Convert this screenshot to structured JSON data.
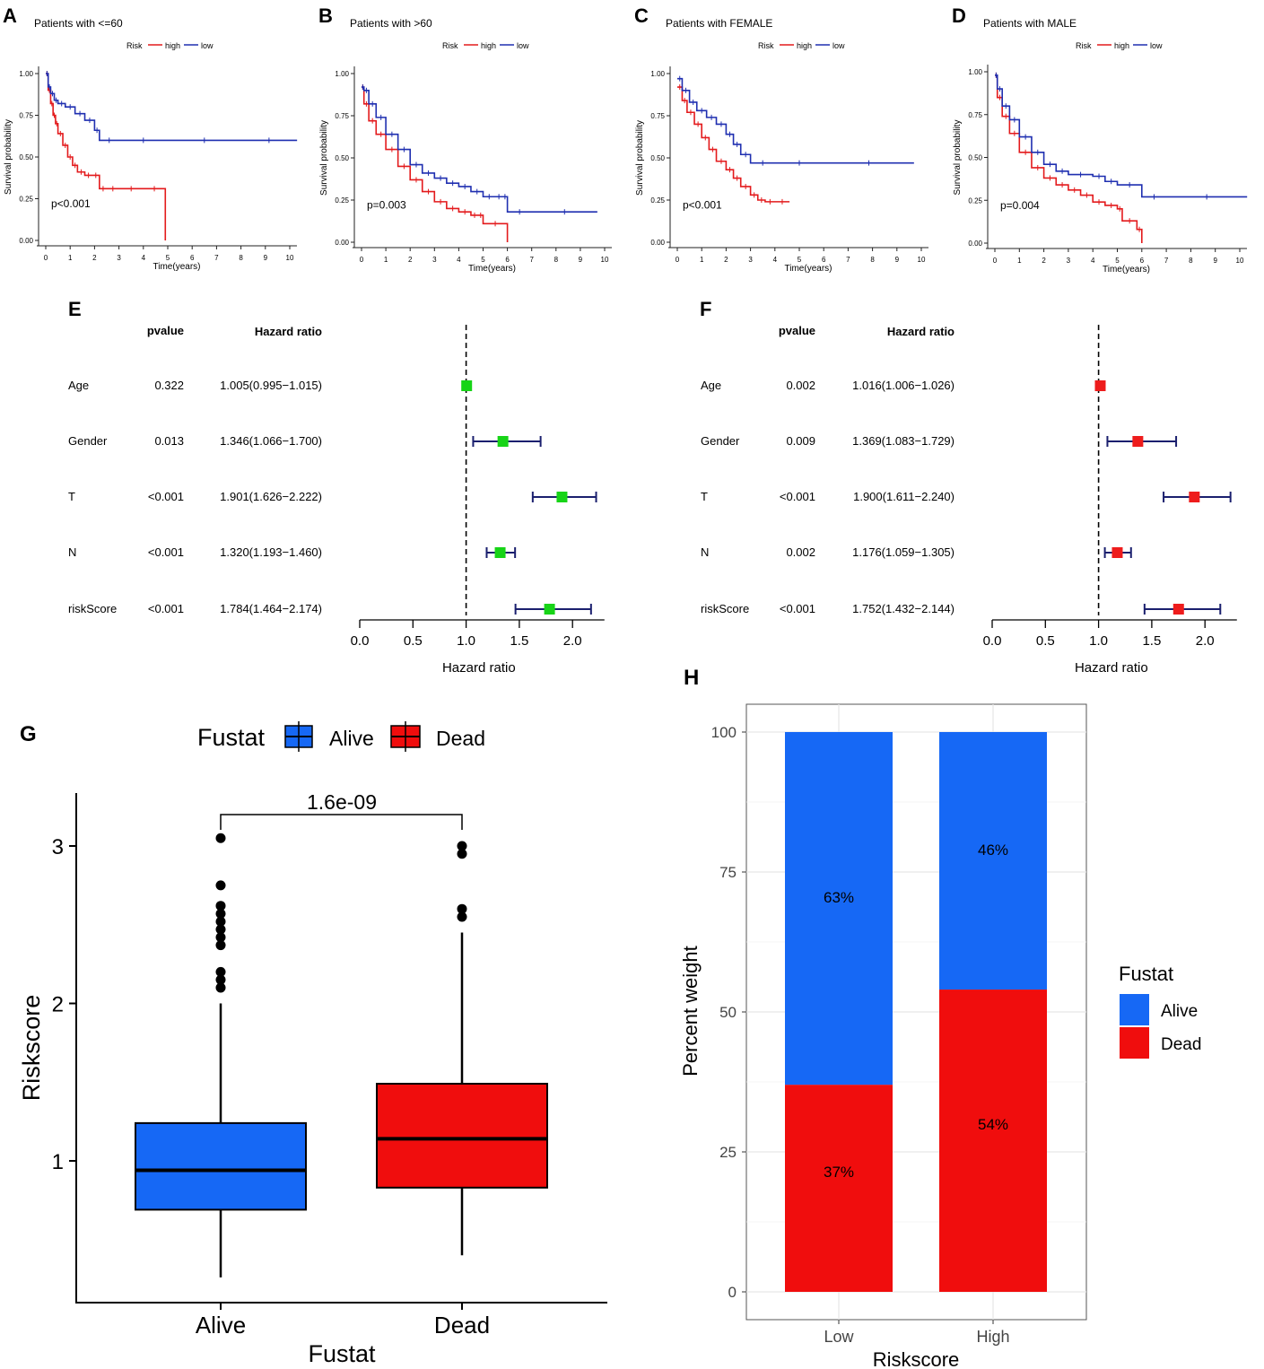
{
  "colors": {
    "high": "#e31a1c",
    "low": "#1f2fb0",
    "alive": "#1668f5",
    "dead": "#f00d0d",
    "green": "#17d417",
    "red_sq": "#ee1c1c",
    "navy": "#1a1f6e"
  },
  "km_common": {
    "legend_title": "Risk",
    "legend_high": "high",
    "legend_low": "low",
    "xlabel": "Time(years)",
    "ylabel": "Survival probability",
    "xticks": [
      "0",
      "1",
      "2",
      "3",
      "4",
      "5",
      "6",
      "7",
      "8",
      "9",
      "10"
    ],
    "yticks": [
      "0.00",
      "0.25",
      "0.50",
      "0.75",
      "1.00"
    ]
  },
  "forest_common": {
    "pvalue_header": "pvalue",
    "hr_header": "Hazard ratio",
    "xlabel": "Hazard ratio",
    "xticks": [
      "0.0",
      "0.5",
      "1.0",
      "1.5",
      "2.0"
    ]
  },
  "chart_data": [
    {
      "panel": "A",
      "type": "line",
      "title": "Patients with <=60",
      "pvalue": "p<0.001",
      "xlim": [
        0,
        10
      ],
      "ylim": [
        0,
        1
      ],
      "series": [
        {
          "name": "high",
          "x": [
            0,
            0.1,
            0.2,
            0.3,
            0.4,
            0.5,
            0.7,
            0.9,
            1.1,
            1.3,
            1.6,
            1.9,
            2.2,
            2.5,
            3.0,
            4.0,
            4.9,
            4.9
          ],
          "y": [
            1,
            0.9,
            0.82,
            0.75,
            0.7,
            0.64,
            0.57,
            0.5,
            0.45,
            0.41,
            0.39,
            0.39,
            0.31,
            0.31,
            0.31,
            0.31,
            0.31,
            0
          ]
        },
        {
          "name": "low",
          "x": [
            0,
            0.1,
            0.2,
            0.35,
            0.5,
            0.8,
            1.2,
            1.6,
            2.0,
            2.2,
            3.0,
            5.0,
            8.0,
            10.3
          ],
          "y": [
            1,
            0.92,
            0.88,
            0.84,
            0.82,
            0.8,
            0.76,
            0.72,
            0.66,
            0.6,
            0.6,
            0.6,
            0.6,
            0.6
          ]
        }
      ]
    },
    {
      "panel": "B",
      "type": "line",
      "title": "Patients with >60",
      "pvalue": "p=0.003",
      "xlim": [
        0,
        10
      ],
      "ylim": [
        0,
        1
      ],
      "series": [
        {
          "name": "high",
          "x": [
            0,
            0.1,
            0.3,
            0.6,
            1.0,
            1.5,
            2.0,
            2.5,
            3.0,
            3.5,
            4.0,
            4.5,
            4.8,
            5.0,
            6.0,
            6.0
          ],
          "y": [
            0.92,
            0.82,
            0.72,
            0.64,
            0.55,
            0.45,
            0.37,
            0.3,
            0.24,
            0.2,
            0.18,
            0.16,
            0.16,
            0.11,
            0.11,
            0
          ]
        },
        {
          "name": "low",
          "x": [
            0,
            0.1,
            0.3,
            0.6,
            1.0,
            1.5,
            2.0,
            2.5,
            3.0,
            3.5,
            4.0,
            4.5,
            5.0,
            5.5,
            5.8,
            6.0,
            7.0,
            9.7
          ],
          "y": [
            0.92,
            0.9,
            0.82,
            0.74,
            0.64,
            0.55,
            0.46,
            0.41,
            0.38,
            0.35,
            0.33,
            0.3,
            0.27,
            0.27,
            0.27,
            0.18,
            0.18,
            0.18
          ]
        }
      ]
    },
    {
      "panel": "C",
      "type": "line",
      "title": "Patients with FEMALE",
      "pvalue": "p<0.001",
      "xlim": [
        0,
        10
      ],
      "ylim": [
        0,
        1
      ],
      "series": [
        {
          "name": "high",
          "x": [
            0,
            0.2,
            0.4,
            0.7,
            1.0,
            1.3,
            1.6,
            2.0,
            2.3,
            2.6,
            3.0,
            3.3,
            3.6,
            4.0,
            4.6
          ],
          "y": [
            0.92,
            0.84,
            0.77,
            0.7,
            0.62,
            0.55,
            0.48,
            0.43,
            0.38,
            0.33,
            0.28,
            0.25,
            0.24,
            0.24,
            0.24
          ]
        },
        {
          "name": "low",
          "x": [
            0,
            0.2,
            0.5,
            0.8,
            1.2,
            1.6,
            2.0,
            2.3,
            2.6,
            3.0,
            4.0,
            6.0,
            9.7
          ],
          "y": [
            0.97,
            0.9,
            0.83,
            0.78,
            0.74,
            0.7,
            0.64,
            0.58,
            0.52,
            0.47,
            0.47,
            0.47,
            0.47
          ]
        }
      ]
    },
    {
      "panel": "D",
      "type": "line",
      "title": "Patients with MALE",
      "pvalue": "p=0.004",
      "xlim": [
        0,
        10
      ],
      "ylim": [
        0,
        1
      ],
      "series": [
        {
          "name": "high",
          "x": [
            0,
            0.1,
            0.3,
            0.6,
            1.0,
            1.5,
            2.0,
            2.5,
            3.0,
            3.5,
            4.0,
            4.5,
            5.0,
            5.2,
            5.8,
            6.0,
            6.0
          ],
          "y": [
            0.98,
            0.85,
            0.74,
            0.64,
            0.53,
            0.44,
            0.38,
            0.34,
            0.31,
            0.28,
            0.24,
            0.22,
            0.2,
            0.13,
            0.08,
            0.08,
            0
          ]
        },
        {
          "name": "low",
          "x": [
            0,
            0.1,
            0.3,
            0.6,
            1.0,
            1.5,
            2.0,
            2.5,
            3.0,
            4.0,
            4.5,
            5.0,
            6.0,
            7.0,
            10.3
          ],
          "y": [
            0.98,
            0.9,
            0.8,
            0.72,
            0.62,
            0.53,
            0.46,
            0.42,
            0.4,
            0.39,
            0.36,
            0.34,
            0.27,
            0.27,
            0.27
          ]
        }
      ]
    },
    {
      "panel": "E",
      "type": "forest",
      "color": "green",
      "rows": [
        {
          "label": "Age",
          "pvalue": "0.322",
          "hr_text": "1.005(0.995−1.015)",
          "hr": 1.005,
          "lo": 0.995,
          "hi": 1.015
        },
        {
          "label": "Gender",
          "pvalue": "0.013",
          "hr_text": "1.346(1.066−1.700)",
          "hr": 1.346,
          "lo": 1.066,
          "hi": 1.7
        },
        {
          "label": "T",
          "pvalue": "<0.001",
          "hr_text": "1.901(1.626−2.222)",
          "hr": 1.901,
          "lo": 1.626,
          "hi": 2.222
        },
        {
          "label": "N",
          "pvalue": "<0.001",
          "hr_text": "1.320(1.193−1.460)",
          "hr": 1.32,
          "lo": 1.193,
          "hi": 1.46
        },
        {
          "label": "riskScore",
          "pvalue": "<0.001",
          "hr_text": "1.784(1.464−2.174)",
          "hr": 1.784,
          "lo": 1.464,
          "hi": 2.174
        }
      ],
      "xlim": [
        0,
        2.3
      ]
    },
    {
      "panel": "F",
      "type": "forest",
      "color": "red",
      "rows": [
        {
          "label": "Age",
          "pvalue": "0.002",
          "hr_text": "1.016(1.006−1.026)",
          "hr": 1.016,
          "lo": 1.006,
          "hi": 1.026
        },
        {
          "label": "Gender",
          "pvalue": "0.009",
          "hr_text": "1.369(1.083−1.729)",
          "hr": 1.369,
          "lo": 1.083,
          "hi": 1.729
        },
        {
          "label": "T",
          "pvalue": "<0.001",
          "hr_text": "1.900(1.611−2.240)",
          "hr": 1.9,
          "lo": 1.611,
          "hi": 2.24
        },
        {
          "label": "N",
          "pvalue": "0.002",
          "hr_text": "1.176(1.059−1.305)",
          "hr": 1.176,
          "lo": 1.059,
          "hi": 1.305
        },
        {
          "label": "riskScore",
          "pvalue": "<0.001",
          "hr_text": "1.752(1.432−2.144)",
          "hr": 1.752,
          "lo": 1.432,
          "hi": 2.144
        }
      ],
      "xlim": [
        0,
        2.3
      ]
    },
    {
      "panel": "G",
      "type": "box",
      "legend_title": "Fustat",
      "xlabel": "Fustat",
      "ylabel": "Riskscore",
      "annotation": "1.6e-09",
      "yticks": [
        1,
        2,
        3
      ],
      "ylim": [
        0.1,
        3.35
      ],
      "groups": [
        {
          "name": "Alive",
          "min": 0.26,
          "q1": 0.69,
          "median": 0.94,
          "q3": 1.24,
          "max": 2.0,
          "outliers": [
            2.1,
            2.15,
            2.2,
            2.37,
            2.42,
            2.47,
            2.52,
            2.57,
            2.62,
            2.75,
            3.05
          ]
        },
        {
          "name": "Dead",
          "min": 0.4,
          "q1": 0.83,
          "median": 1.14,
          "q3": 1.49,
          "max": 2.45,
          "outliers": [
            2.55,
            2.6,
            2.95,
            3.0
          ]
        }
      ]
    },
    {
      "panel": "H",
      "type": "bar",
      "xlabel": "Riskscore",
      "ylabel": "Percent weight",
      "legend_title": "Fustat",
      "categories": [
        "Low",
        "High"
      ],
      "yticks": [
        0,
        25,
        50,
        75,
        100
      ],
      "ylim": [
        0,
        105
      ],
      "series": [
        {
          "name": "Alive",
          "values": [
            63,
            46
          ],
          "labels": [
            "63%",
            "46%"
          ]
        },
        {
          "name": "Dead",
          "values": [
            37,
            54
          ],
          "labels": [
            "37%",
            "54%"
          ]
        }
      ]
    }
  ]
}
